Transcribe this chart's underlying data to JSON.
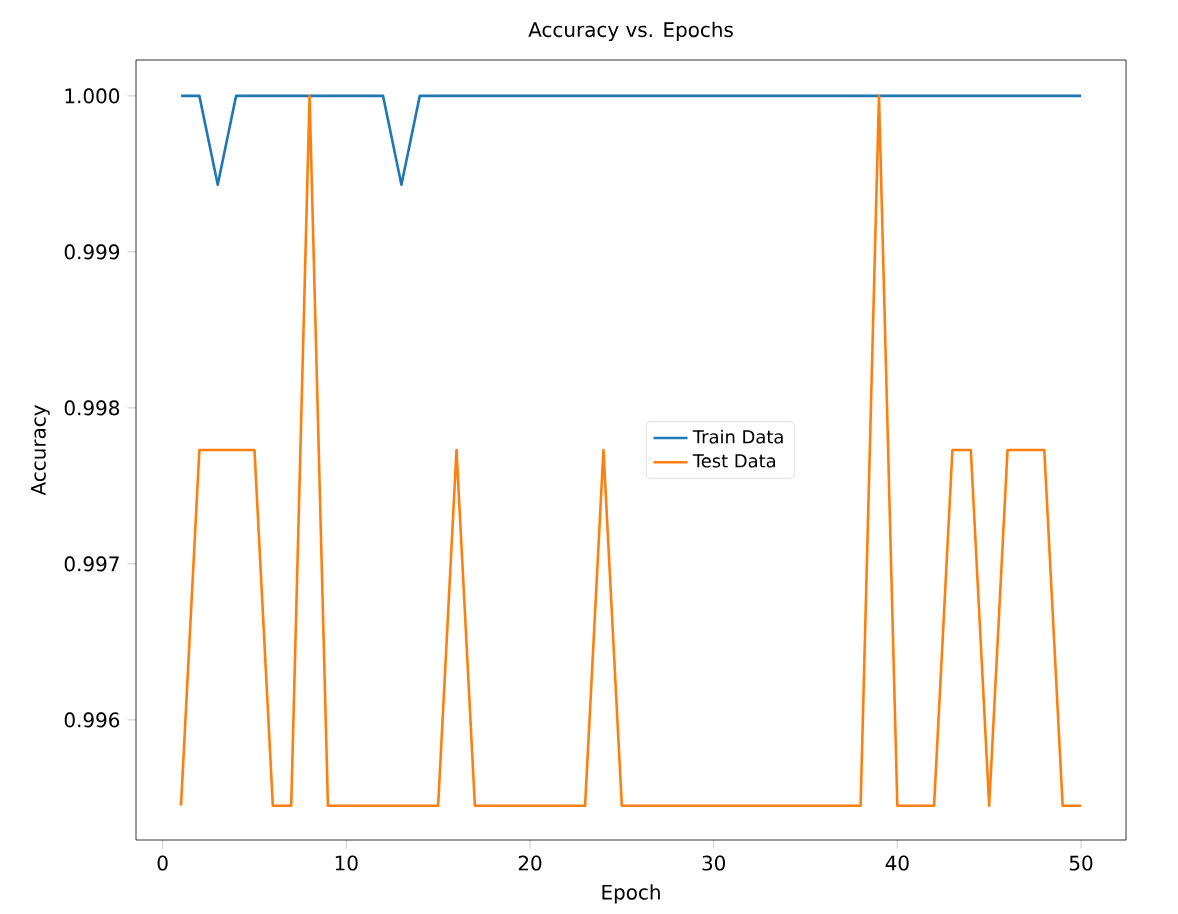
{
  "chart_data": {
    "type": "line",
    "title": "Accuracy vs. Epochs",
    "xlabel": "Epoch",
    "ylabel": "Accuracy",
    "x": [
      1,
      2,
      3,
      4,
      5,
      6,
      7,
      8,
      9,
      10,
      11,
      12,
      13,
      14,
      15,
      16,
      17,
      18,
      19,
      20,
      21,
      22,
      23,
      24,
      25,
      26,
      27,
      28,
      29,
      30,
      31,
      32,
      33,
      34,
      35,
      36,
      37,
      38,
      39,
      40,
      41,
      42,
      43,
      44,
      45,
      46,
      47,
      48,
      49,
      50
    ],
    "series": [
      {
        "name": "Train Data",
        "color": "#1f77b4",
        "values": [
          1.0,
          1.0,
          0.99943,
          1.0,
          1.0,
          1.0,
          1.0,
          1.0,
          1.0,
          1.0,
          1.0,
          1.0,
          0.99943,
          1.0,
          1.0,
          1.0,
          1.0,
          1.0,
          1.0,
          1.0,
          1.0,
          1.0,
          1.0,
          1.0,
          1.0,
          1.0,
          1.0,
          1.0,
          1.0,
          1.0,
          1.0,
          1.0,
          1.0,
          1.0,
          1.0,
          1.0,
          1.0,
          1.0,
          1.0,
          1.0,
          1.0,
          1.0,
          1.0,
          1.0,
          1.0,
          1.0,
          1.0,
          1.0,
          1.0,
          1.0
        ]
      },
      {
        "name": "Test Data",
        "color": "#ff7f0e",
        "values": [
          0.99545,
          0.99773,
          0.99773,
          0.99773,
          0.99773,
          0.99545,
          0.99545,
          1.0,
          0.99545,
          0.99545,
          0.99545,
          0.99545,
          0.99545,
          0.99545,
          0.99545,
          0.99773,
          0.99545,
          0.99545,
          0.99545,
          0.99545,
          0.99545,
          0.99545,
          0.99545,
          0.99773,
          0.99545,
          0.99545,
          0.99545,
          0.99545,
          0.99545,
          0.99545,
          0.99545,
          0.99545,
          0.99545,
          0.99545,
          0.99545,
          0.99545,
          0.99545,
          0.99545,
          1.0,
          0.99545,
          0.99545,
          0.99545,
          0.99773,
          0.99773,
          0.99545,
          0.99773,
          0.99773,
          0.99773,
          0.99545,
          0.99545
        ]
      }
    ],
    "xlim": [
      -1.45,
      52.45
    ],
    "ylim": [
      0.99523,
      1.00023
    ],
    "xticks": [
      0,
      10,
      20,
      30,
      40,
      50
    ],
    "yticks": [
      {
        "value": 0.996,
        "label": "0.996"
      },
      {
        "value": 0.997,
        "label": "0.997"
      },
      {
        "value": 0.998,
        "label": "0.998"
      },
      {
        "value": 0.999,
        "label": "0.999"
      },
      {
        "value": 1.0,
        "label": "1.000"
      }
    ],
    "legend": "center",
    "grid": false,
    "marker": "none",
    "line_style": "solid"
  }
}
